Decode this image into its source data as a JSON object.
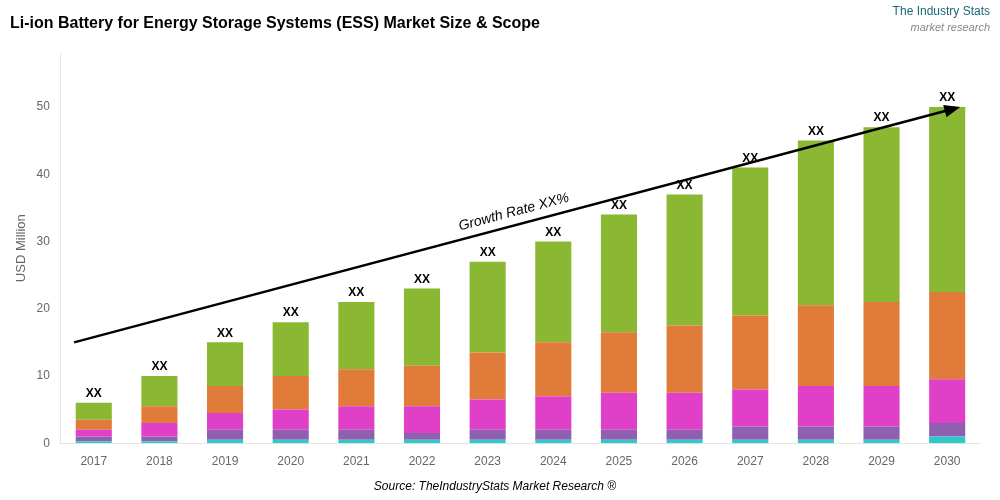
{
  "chart_data": {
    "type": "bar",
    "stacked": true,
    "title": "Li-ion Battery for Energy Storage Systems (ESS) Market Size & Scope",
    "ylabel": "USD Million",
    "source": "Source: TheIndustryStats Market Research ®",
    "watermark": [
      "The Industry Stats",
      "market research"
    ],
    "categories": [
      "2017",
      "2018",
      "2019",
      "2020",
      "2021",
      "2022",
      "2023",
      "2024",
      "2025",
      "2026",
      "2027",
      "2028",
      "2029",
      "2030"
    ],
    "series": [
      {
        "color": "#30c8c8",
        "values": [
          0.3,
          0.3,
          0.5,
          0.5,
          0.5,
          0.5,
          0.5,
          0.5,
          0.5,
          0.5,
          0.5,
          0.5,
          0.5,
          1.0
        ]
      },
      {
        "color": "#9060b0",
        "values": [
          0.7,
          0.7,
          1.5,
          1.5,
          1.5,
          1.0,
          1.5,
          1.5,
          1.5,
          1.5,
          2.0,
          2.0,
          2.0,
          2.0
        ]
      },
      {
        "color": "#e040c8",
        "values": [
          1.0,
          2.0,
          2.5,
          3.0,
          3.5,
          4.0,
          4.5,
          5.0,
          5.5,
          5.5,
          5.5,
          6.0,
          6.0,
          6.5
        ]
      },
      {
        "color": "#e07b39",
        "values": [
          1.5,
          2.5,
          4.0,
          5.0,
          5.5,
          6.0,
          7.0,
          8.0,
          9.0,
          10.0,
          11.0,
          12.0,
          12.5,
          13.0
        ]
      },
      {
        "color": "#8ab833",
        "values": [
          2.5,
          4.5,
          6.5,
          8.0,
          10.0,
          11.5,
          13.5,
          15.0,
          17.5,
          19.5,
          22.0,
          24.5,
          26.0,
          27.5
        ]
      }
    ],
    "stack_labels": [
      "XX",
      "XX",
      "XX",
      "XX",
      "XX",
      "XX",
      "XX",
      "XX",
      "XX",
      "XX",
      "XX",
      "XX",
      "XX",
      "XX"
    ],
    "annotations": [
      {
        "type": "arrow",
        "text": "Growth Rate XX%",
        "from": {
          "x": "2017",
          "y": 15
        },
        "to": {
          "x": "2030",
          "y": 50
        }
      }
    ],
    "ylim": [
      0,
      58
    ],
    "yticks": [
      0,
      10,
      20,
      30,
      40,
      50
    ],
    "grid": false
  }
}
